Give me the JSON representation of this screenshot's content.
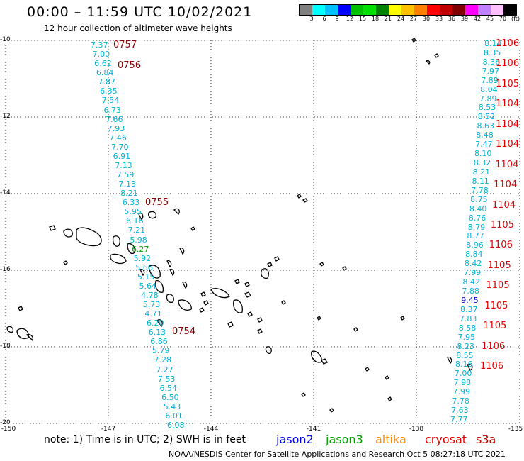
{
  "title": "00:00 – 11:59 UTC 10/02/2021",
  "subtitle": "12 hour collection of altimeter wave heights",
  "colorbar": {
    "colors": [
      "#808080",
      "#00ffff",
      "#00c0ff",
      "#0000ff",
      "#00c000",
      "#00e000",
      "#008000",
      "#ffff00",
      "#ffc000",
      "#ff8000",
      "#ff0000",
      "#c00000",
      "#800000",
      "#ff00ff",
      "#c080ff",
      "#ffc0ff",
      "#000000"
    ],
    "labels": [
      "3",
      "6",
      "9",
      "12",
      "15",
      "18",
      "21",
      "24",
      "27",
      "30",
      "33",
      "36",
      "39",
      "42",
      "45",
      "70",
      "(ft)"
    ]
  },
  "axes": {
    "y_labels": [
      "-10",
      "-12",
      "-14",
      "-16",
      "-18",
      "-20"
    ],
    "x_labels": [
      "-150",
      "-147",
      "-144",
      "-141",
      "-138",
      "-135"
    ]
  },
  "note": "note:  1) Time is in UTC;  2) SWH is in feet",
  "legend": [
    {
      "name": "jason2",
      "color": "#0000e0"
    },
    {
      "name": "jason3",
      "color": "#00a000"
    },
    {
      "name": "altika",
      "color": "#ff8c00"
    },
    {
      "name": "cryosat",
      "color": "#e00000"
    },
    {
      "name": "s3a",
      "color": "#c00000"
    }
  ],
  "footer": "NOAA/NESDIS Center for Satellite Applications and Research    Oct  5 08:27:18 UTC 2021",
  "track_left": {
    "color": "#00b4d8",
    "values": [
      "7.37",
      "7.00",
      "6.62",
      "6.84",
      "7.87",
      "6.35",
      "7.54",
      "6.73",
      "7.66",
      "7.93",
      "7.46",
      "7.70",
      "6.91",
      "7.13",
      "7.59",
      "7.13",
      "8.21",
      "6.33",
      "5.95",
      "6.16",
      "7.21",
      "5.98",
      "6.27",
      "5.92",
      "5.66",
      "5.15",
      "5.64",
      "4.78",
      "5.73",
      "4.71",
      "6.20",
      "6.13",
      "6.86",
      "5.79",
      "7.28",
      "7.27",
      "7.53",
      "6.54",
      "6.50",
      "5.43",
      "6.01",
      "6.08"
    ]
  },
  "track_left_special": {
    "index": 22,
    "color": "#00a000"
  },
  "pass_left": {
    "color": "#8b0000",
    "times": [
      "0757",
      "0756",
      "0755",
      "0754"
    ]
  },
  "track_right": {
    "color": "#00b4d8",
    "values": [
      "8.14",
      "8.35",
      "8.36",
      "7.97",
      "7.89",
      "8.04",
      "7.89",
      "8.53",
      "8.52",
      "8.63",
      "8.48",
      "7.47",
      "8.10",
      "8.32",
      "8.21",
      "8.11",
      "7.78",
      "8.75",
      "8.40",
      "8.76",
      "8.79",
      "8.77",
      "8.96",
      "8.84",
      "8.42",
      "7.99",
      "8.42",
      "7.88",
      "9.45",
      "8.37",
      "7.83",
      "8.58",
      "7.95",
      "8.23",
      "8.55",
      "8.16",
      "7.00",
      "7.98",
      "7.99",
      "7.78",
      "7.63",
      "7.77"
    ]
  },
  "track_right_special": {
    "index": 28,
    "color": "#0000e0"
  },
  "pass_right": {
    "color": "#e00000",
    "times": [
      "1106",
      "1106",
      "1105",
      "1104",
      "1104",
      "1104",
      "1104",
      "1104",
      "1104",
      "1105",
      "1106",
      "1105",
      "1105",
      "1105",
      "1105",
      "1106",
      "1106"
    ]
  }
}
